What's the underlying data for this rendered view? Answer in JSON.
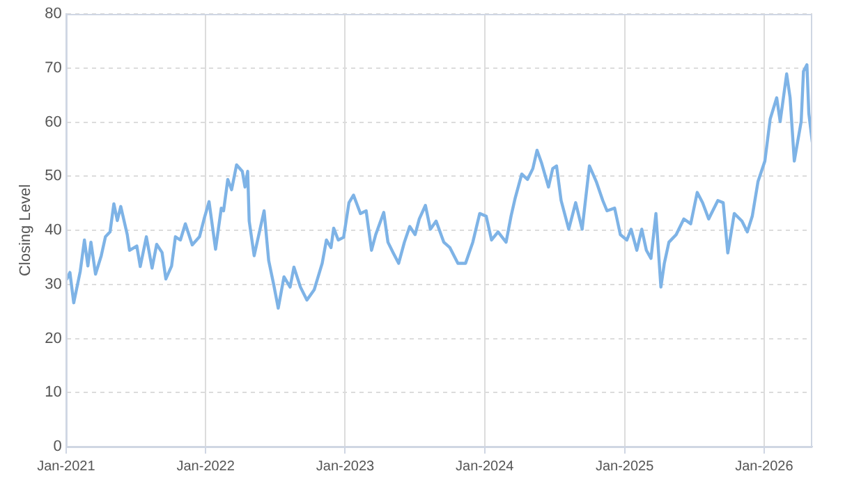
{
  "chart_data": {
    "type": "line",
    "ylabel": "Closing Level",
    "x": [
      "2021-01-03",
      "2021-01-11",
      "2021-01-21",
      "2021-02-07",
      "2021-02-18",
      "2021-02-27",
      "2021-03-07",
      "2021-03-19",
      "2021-04-03",
      "2021-04-14",
      "2021-04-26",
      "2021-05-06",
      "2021-05-15",
      "2021-05-24",
      "2021-06-10",
      "2021-06-16",
      "2021-07-05",
      "2021-07-14",
      "2021-07-30",
      "2021-08-14",
      "2021-08-26",
      "2021-09-09",
      "2021-09-19",
      "2021-10-04",
      "2021-10-14",
      "2021-10-27",
      "2021-11-09",
      "2021-11-27",
      "2021-12-16",
      "2021-12-28",
      "2022-01-10",
      "2022-01-27",
      "2022-02-11",
      "2022-02-17",
      "2022-02-28",
      "2022-03-10",
      "2022-03-23",
      "2022-04-07",
      "2022-04-14",
      "2022-04-21",
      "2022-04-25",
      "2022-05-08",
      "2022-06-03",
      "2022-06-15",
      "2022-06-28",
      "2022-07-10",
      "2022-07-25",
      "2022-08-10",
      "2022-08-20",
      "2022-09-06",
      "2022-09-23",
      "2022-10-12",
      "2022-11-02",
      "2022-11-13",
      "2022-11-25",
      "2022-12-02",
      "2022-12-14",
      "2022-12-28",
      "2023-01-11",
      "2023-01-23",
      "2023-02-10",
      "2023-02-25",
      "2023-03-11",
      "2023-03-22",
      "2023-04-12",
      "2023-04-23",
      "2023-05-07",
      "2023-05-21",
      "2023-06-05",
      "2023-06-19",
      "2023-07-03",
      "2023-07-14",
      "2023-07-30",
      "2023-08-12",
      "2023-08-27",
      "2023-09-16",
      "2023-10-02",
      "2023-10-23",
      "2023-11-12",
      "2023-12-01",
      "2023-12-19",
      "2024-01-05",
      "2024-01-19",
      "2024-02-05",
      "2024-02-26",
      "2024-03-10",
      "2024-03-21",
      "2024-04-07",
      "2024-04-22",
      "2024-05-06",
      "2024-05-17",
      "2024-05-29",
      "2024-06-16",
      "2024-06-27",
      "2024-07-07",
      "2024-07-19",
      "2024-08-08",
      "2024-08-26",
      "2024-09-12",
      "2024-10-01",
      "2024-10-19",
      "2024-11-05",
      "2024-11-16",
      "2024-12-06",
      "2024-12-21",
      "2025-01-07",
      "2025-01-18",
      "2025-02-02",
      "2025-02-15",
      "2025-02-27",
      "2025-03-11",
      "2025-03-24",
      "2025-04-06",
      "2025-04-15",
      "2025-04-27",
      "2025-05-16",
      "2025-06-05",
      "2025-06-23",
      "2025-07-10",
      "2025-07-24",
      "2025-08-09",
      "2025-09-02",
      "2025-09-16",
      "2025-09-28",
      "2025-10-15",
      "2025-11-04",
      "2025-11-18",
      "2025-12-01",
      "2025-12-16",
      "2026-01-03",
      "2026-01-17",
      "2026-02-03",
      "2026-02-12",
      "2026-03-01",
      "2026-03-10",
      "2026-03-21",
      "2026-04-08",
      "2026-04-14",
      "2026-04-23",
      "2026-04-28",
      "2026-05-07"
    ],
    "series": [
      {
        "color": "#7eb3e6",
        "values": [
          31.0,
          32.2,
          26.6,
          32.4,
          38.2,
          33.4,
          37.8,
          31.9,
          35.3,
          38.8,
          39.7,
          44.9,
          41.8,
          44.4,
          39.2,
          36.3,
          37.1,
          33.3,
          38.8,
          33.0,
          37.4,
          35.9,
          31.0,
          33.4,
          38.8,
          38.2,
          41.2,
          37.3,
          38.8,
          42.1,
          45.3,
          36.5,
          44.1,
          43.6,
          49.4,
          47.5,
          52.1,
          50.9,
          48.0,
          50.9,
          41.7,
          35.3,
          43.6,
          34.4,
          30.0,
          25.6,
          31.4,
          29.5,
          33.2,
          29.5,
          27.1,
          29.0,
          33.9,
          38.2,
          36.8,
          40.4,
          38.2,
          38.7,
          45.1,
          46.5,
          43.1,
          43.6,
          36.3,
          39.2,
          43.3,
          37.8,
          35.8,
          33.9,
          37.8,
          40.7,
          39.2,
          42.1,
          44.6,
          40.2,
          41.7,
          37.8,
          36.8,
          33.9,
          33.9,
          37.8,
          43.1,
          42.6,
          38.2,
          39.7,
          37.8,
          42.6,
          46.0,
          50.4,
          49.4,
          51.4,
          54.8,
          52.4,
          48.0,
          51.4,
          51.9,
          45.5,
          40.2,
          45.1,
          40.2,
          51.9,
          49.0,
          45.5,
          43.6,
          44.1,
          39.2,
          38.2,
          40.2,
          36.3,
          40.2,
          36.3,
          34.8,
          43.1,
          29.5,
          33.9,
          37.8,
          39.2,
          42.1,
          41.2,
          47.0,
          45.1,
          42.1,
          45.5,
          45.1,
          35.8,
          43.1,
          41.7,
          39.7,
          42.6,
          49.0,
          52.8,
          60.6,
          64.5,
          60.1,
          68.9,
          64.5,
          52.8,
          60.1,
          69.4,
          70.6,
          61.6,
          56.3
        ]
      }
    ],
    "xlim": [
      "2021-01-01",
      "2026-05-07"
    ],
    "xticks": [
      {
        "value": "2021-01-01",
        "label": "Jan-2021"
      },
      {
        "value": "2022-01-01",
        "label": "Jan-2022"
      },
      {
        "value": "2023-01-01",
        "label": "Jan-2023"
      },
      {
        "value": "2024-01-01",
        "label": "Jan-2024"
      },
      {
        "value": "2025-01-01",
        "label": "Jan-2025"
      },
      {
        "value": "2026-01-01",
        "label": "Jan-2026"
      }
    ],
    "ylim": [
      0,
      80
    ],
    "yticks": [
      0,
      10,
      20,
      30,
      40,
      50,
      60,
      70,
      80
    ],
    "grid": true,
    "marker": "none",
    "line_style": "solid"
  }
}
